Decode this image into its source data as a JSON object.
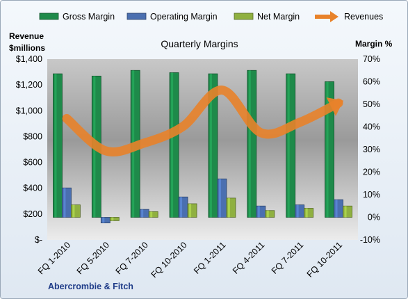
{
  "chart_data": {
    "type": "bar",
    "title": "Quarterly Margins",
    "company": "Abercrombie & Fitch",
    "ylabel_left_line1": "Revenue",
    "ylabel_left_line2": "$millions",
    "ylabel_right": "Margin %",
    "categories": [
      "FQ 1-2010",
      "FQ 5-2010",
      "FQ 7-2010",
      "FQ 10-2010",
      "FQ 1-2011",
      "FQ 4-2011",
      "FQ 7-2011",
      "FQ 10-2011"
    ],
    "series": [
      {
        "name": "Gross Margin",
        "kind": "bar",
        "axis": "right",
        "color": "#1e8a4a",
        "values": [
          63.5,
          62.5,
          65,
          64,
          63.5,
          65,
          63.5,
          60
        ]
      },
      {
        "name": "Operating Margin",
        "kind": "bar",
        "axis": "right",
        "color": "#4a6fb0",
        "values": [
          13,
          -2.5,
          3.5,
          9,
          17,
          5,
          5.5,
          7.8
        ]
      },
      {
        "name": "Net Margin",
        "kind": "bar",
        "axis": "right",
        "color": "#8fb040",
        "values": [
          5.5,
          -1.5,
          2.5,
          6,
          8.5,
          3,
          4,
          5
        ]
      },
      {
        "name": "Revenues",
        "kind": "line",
        "axis": "left",
        "color": "#e8822a",
        "values": [
          940,
          690,
          750,
          880,
          1160,
          830,
          910,
          1060
        ]
      }
    ],
    "ylim_left": [
      0,
      1400
    ],
    "yticks_left": [
      "$-",
      "$200",
      "$400",
      "$600",
      "$800",
      "$1,000",
      "$1,200",
      "$1,400"
    ],
    "ylim_right": [
      -10,
      70
    ],
    "yticks_right": [
      "-10%",
      "0%",
      "10%",
      "20%",
      "30%",
      "40%",
      "50%",
      "60%",
      "70%"
    ],
    "grid": false,
    "legend_position": "top"
  }
}
